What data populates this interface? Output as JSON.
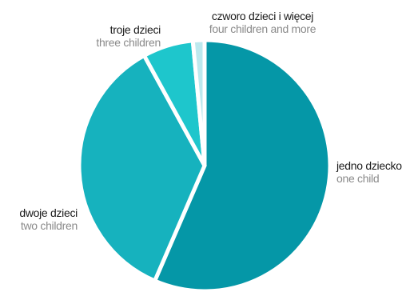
{
  "chart_data": {
    "type": "pie",
    "slices": [
      {
        "label_pl": "jedno dziecko",
        "label_en": "one child",
        "value": 56.5,
        "color": "#0597a7"
      },
      {
        "label_pl": "dwoje dzieci",
        "label_en": "two children",
        "value": 35.5,
        "color": "#16b2be"
      },
      {
        "label_pl": "troje dzieci",
        "label_en": "three children",
        "value": 6.5,
        "color": "#1ec6cc"
      },
      {
        "label_pl": "czworo dzieci i więcej",
        "label_en": "four children and more",
        "value": 1.5,
        "color": "#bde9ee"
      }
    ]
  }
}
